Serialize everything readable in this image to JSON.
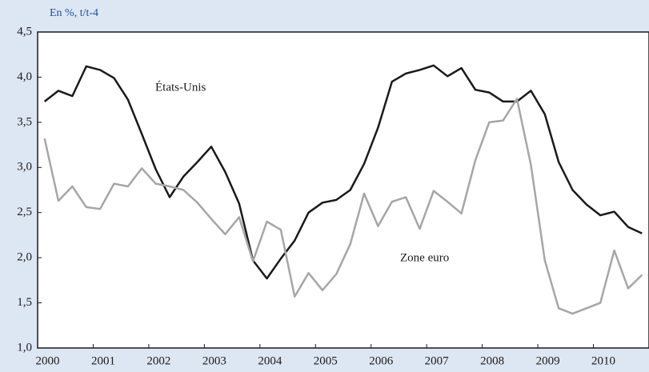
{
  "chart_data": {
    "type": "line",
    "y_axis_label": "En %, t/t-4",
    "annotations": [
      "États-Unis",
      "Zone euro"
    ],
    "x": [
      2000.125,
      2000.375,
      2000.625,
      2000.875,
      2001.125,
      2001.375,
      2001.625,
      2001.875,
      2002.125,
      2002.375,
      2002.625,
      2002.875,
      2003.125,
      2003.375,
      2003.625,
      2003.875,
      2004.125,
      2004.375,
      2004.625,
      2004.875,
      2005.125,
      2005.375,
      2005.625,
      2005.875,
      2006.125,
      2006.375,
      2006.625,
      2006.875,
      2007.125,
      2007.375,
      2007.625,
      2007.875,
      2008.125,
      2008.375,
      2008.625,
      2008.875,
      2009.125,
      2009.375,
      2009.625,
      2009.875,
      2010.125,
      2010.375,
      2010.625,
      2010.875
    ],
    "series": [
      {
        "name": "États-Unis",
        "color": "#1a1a1a",
        "values": [
          3.73,
          3.85,
          3.79,
          4.12,
          4.08,
          3.99,
          3.75,
          3.37,
          2.98,
          2.67,
          2.9,
          3.06,
          3.23,
          2.95,
          2.6,
          1.97,
          1.77,
          1.99,
          2.19,
          2.5,
          2.61,
          2.64,
          2.75,
          3.04,
          3.44,
          3.95,
          4.04,
          4.08,
          4.13,
          4.01,
          4.1,
          3.86,
          3.83,
          3.73,
          3.73,
          3.85,
          3.59,
          3.06,
          2.75,
          2.59,
          2.47,
          2.51,
          2.34,
          2.27
        ]
      },
      {
        "name": "Zone euro",
        "color": "#a6a6a6",
        "values": [
          3.32,
          2.63,
          2.79,
          2.56,
          2.54,
          2.82,
          2.79,
          2.99,
          2.82,
          2.79,
          2.75,
          2.61,
          2.43,
          2.26,
          2.45,
          1.96,
          2.4,
          2.31,
          1.57,
          1.83,
          1.64,
          1.82,
          2.15,
          2.71,
          2.35,
          2.62,
          2.67,
          2.32,
          2.74,
          2.62,
          2.49,
          3.08,
          3.5,
          3.52,
          3.76,
          3.03,
          1.97,
          1.44,
          1.38,
          1.44,
          1.5,
          2.08,
          1.66,
          1.81
        ]
      }
    ],
    "xlim": [
      2000,
      2011
    ],
    "xticks": [
      2000,
      2001,
      2002,
      2003,
      2004,
      2005,
      2006,
      2007,
      2008,
      2009,
      2010
    ],
    "ylim": [
      1.0,
      4.5
    ],
    "yticks": [
      {
        "value": 1.0,
        "label": "1,0"
      },
      {
        "value": 1.5,
        "label": "1,5"
      },
      {
        "value": 2.0,
        "label": "2,0"
      },
      {
        "value": 2.5,
        "label": "2,5"
      },
      {
        "value": 3.0,
        "label": "3,0"
      },
      {
        "value": 3.5,
        "label": "3,5"
      },
      {
        "value": 4.0,
        "label": "4,0"
      },
      {
        "value": 4.5,
        "label": "4,5"
      }
    ],
    "grid": false
  }
}
